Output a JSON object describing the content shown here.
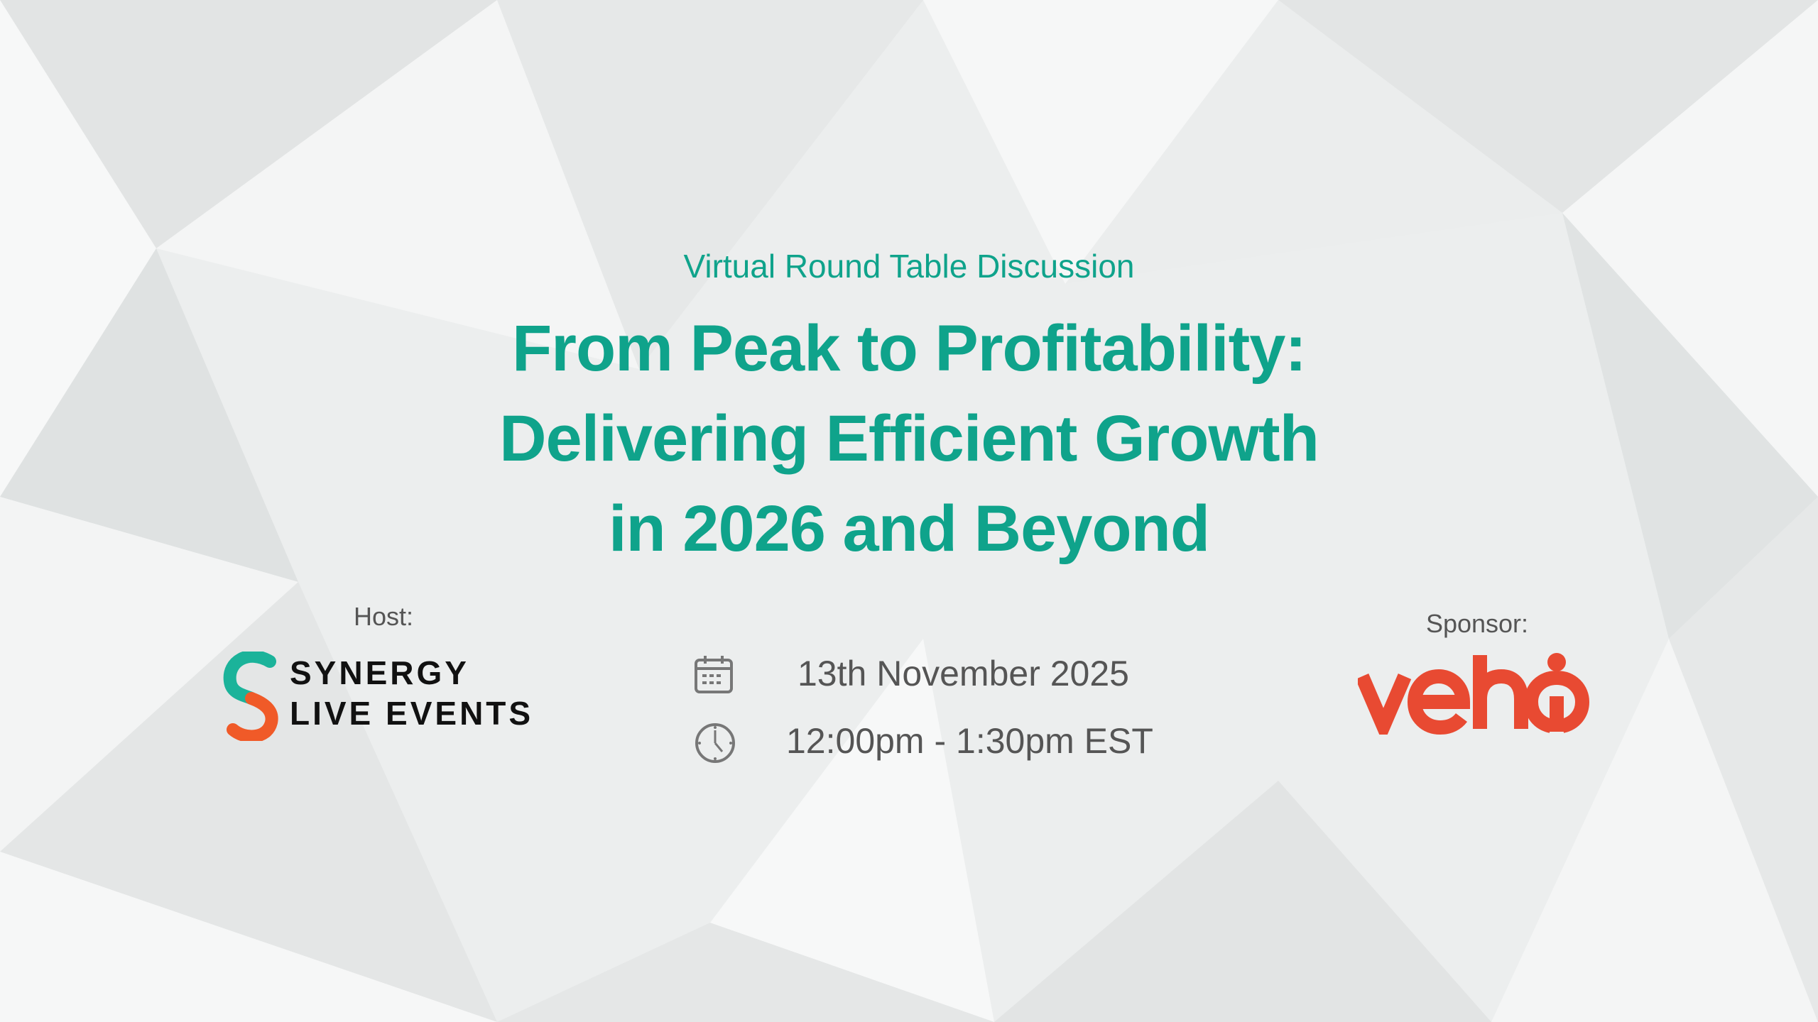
{
  "event": {
    "subtitle": "Virtual Round Table Discussion",
    "title_lines": [
      "From Peak to Profitability:",
      "Delivering Efficient Growth",
      "in 2026 and Beyond"
    ],
    "date": "13th November 2025",
    "time": "12:00pm - 1:30pm EST",
    "date_icon": "calendar-icon",
    "time_icon": "clock-icon"
  },
  "host": {
    "label": "Host:",
    "logo_lines": [
      "SYNERGY",
      "LIVE EVENTS"
    ]
  },
  "sponsor": {
    "label": "Sponsor:",
    "logo_text": "veho"
  },
  "colors": {
    "accent": "#0fa38b",
    "synergy_teal": "#1bb39a",
    "synergy_orange": "#f05a28",
    "veho_red": "#e84a32",
    "text_gray": "#555555"
  }
}
